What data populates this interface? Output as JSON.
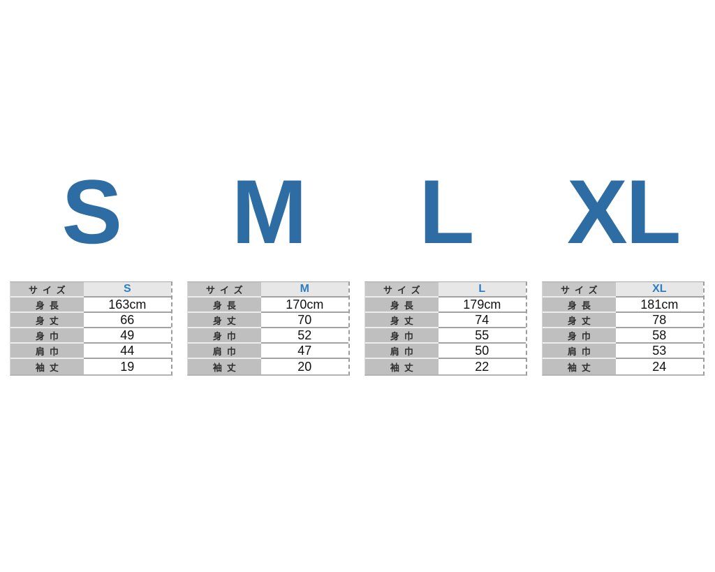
{
  "colors": {
    "big_letter_blue": "#2d6da3",
    "size_header_text_blue": "#2e7fbf",
    "label_cell_bg": "#bfbfbf",
    "header_value_cell_bg": "#e7e7e7",
    "value_cell_bg": "#ffffff",
    "separator_dark": "#a3a3a3",
    "separator_light": "#ededed",
    "page_background": "#ffffff"
  },
  "chart_data": {
    "type": "table",
    "title": "",
    "row_labels": [
      "サイズ",
      "身長",
      "身丈",
      "身巾",
      "肩巾",
      "袖丈"
    ],
    "sizes": [
      {
        "label": "S",
        "values": [
          "163cm",
          "66",
          "49",
          "44",
          "19"
        ]
      },
      {
        "label": "M",
        "values": [
          "170cm",
          "70",
          "52",
          "47",
          "20"
        ]
      },
      {
        "label": "L",
        "values": [
          "179cm",
          "74",
          "55",
          "50",
          "22"
        ]
      },
      {
        "label": "XL",
        "values": [
          "181cm",
          "78",
          "58",
          "53",
          "24"
        ]
      }
    ]
  }
}
